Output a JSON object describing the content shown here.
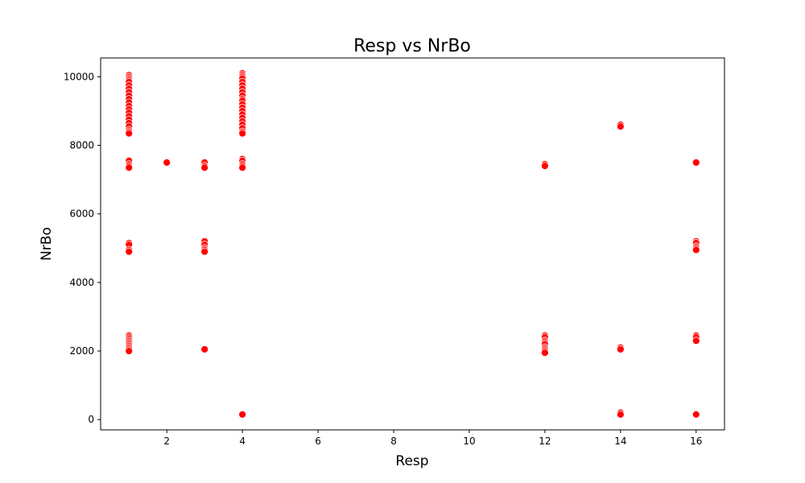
{
  "chart_data": {
    "type": "scatter",
    "title": "Resp vs NrBo",
    "xlabel": "Resp",
    "ylabel": "NrBo",
    "xlim": [
      0.25,
      16.75
    ],
    "ylim": [
      -300,
      10550
    ],
    "xticks": [
      2,
      4,
      6,
      8,
      10,
      12,
      14,
      16
    ],
    "yticks": [
      0,
      2000,
      4000,
      6000,
      8000,
      10000
    ],
    "grid": false,
    "legend": "none",
    "marker_color": "#ff0000",
    "marker_edge_color": "#ffffff",
    "series": [
      {
        "points": [
          [
            1,
            10050
          ],
          [
            1,
            10000
          ],
          [
            1,
            9950
          ],
          [
            1,
            9900
          ],
          [
            1,
            9850
          ],
          [
            1,
            9750
          ],
          [
            1,
            9650
          ],
          [
            1,
            9550
          ],
          [
            1,
            9450
          ],
          [
            1,
            9350
          ],
          [
            1,
            9250
          ],
          [
            1,
            9150
          ],
          [
            1,
            9050
          ],
          [
            1,
            8950
          ],
          [
            1,
            8850
          ],
          [
            1,
            8750
          ],
          [
            1,
            8650
          ],
          [
            1,
            8550
          ],
          [
            1,
            8450
          ],
          [
            1,
            8400
          ],
          [
            1,
            8350
          ],
          [
            1,
            7550
          ],
          [
            1,
            7450
          ],
          [
            1,
            7400
          ],
          [
            1,
            7350
          ],
          [
            1,
            5150
          ],
          [
            1,
            5100
          ],
          [
            1,
            4950
          ],
          [
            1,
            4900
          ],
          [
            1,
            2450
          ],
          [
            1,
            2400
          ],
          [
            1,
            2350
          ],
          [
            1,
            2300
          ],
          [
            1,
            2250
          ],
          [
            1,
            2200
          ],
          [
            1,
            2150
          ],
          [
            1,
            2100
          ],
          [
            1,
            2050
          ],
          [
            1,
            2000
          ],
          [
            2,
            7500
          ],
          [
            3,
            7500
          ],
          [
            3,
            7400
          ],
          [
            3,
            7350
          ],
          [
            3,
            5200
          ],
          [
            3,
            5100
          ],
          [
            3,
            5000
          ],
          [
            3,
            4950
          ],
          [
            3,
            4900
          ],
          [
            3,
            2050
          ],
          [
            4,
            10100
          ],
          [
            4,
            10050
          ],
          [
            4,
            10000
          ],
          [
            4,
            9950
          ],
          [
            4,
            9850
          ],
          [
            4,
            9750
          ],
          [
            4,
            9650
          ],
          [
            4,
            9550
          ],
          [
            4,
            9450
          ],
          [
            4,
            9350
          ],
          [
            4,
            9300
          ],
          [
            4,
            9200
          ],
          [
            4,
            9100
          ],
          [
            4,
            9000
          ],
          [
            4,
            8900
          ],
          [
            4,
            8800
          ],
          [
            4,
            8700
          ],
          [
            4,
            8600
          ],
          [
            4,
            8500
          ],
          [
            4,
            8400
          ],
          [
            4,
            8350
          ],
          [
            4,
            7600
          ],
          [
            4,
            7550
          ],
          [
            4,
            7450
          ],
          [
            4,
            7400
          ],
          [
            4,
            7350
          ],
          [
            4,
            150
          ],
          [
            12,
            7450
          ],
          [
            12,
            7400
          ],
          [
            12,
            2450
          ],
          [
            12,
            2400
          ],
          [
            12,
            2300
          ],
          [
            12,
            2250
          ],
          [
            12,
            2200
          ],
          [
            12,
            2100
          ],
          [
            12,
            2050
          ],
          [
            12,
            2000
          ],
          [
            12,
            1950
          ],
          [
            14,
            8600
          ],
          [
            14,
            8550
          ],
          [
            14,
            2100
          ],
          [
            14,
            2050
          ],
          [
            14,
            200
          ],
          [
            14,
            150
          ],
          [
            16,
            7500
          ],
          [
            16,
            5200
          ],
          [
            16,
            5150
          ],
          [
            16,
            5050
          ],
          [
            16,
            5000
          ],
          [
            16,
            4950
          ],
          [
            16,
            2450
          ],
          [
            16,
            2400
          ],
          [
            16,
            2300
          ],
          [
            16,
            150
          ]
        ]
      }
    ]
  }
}
